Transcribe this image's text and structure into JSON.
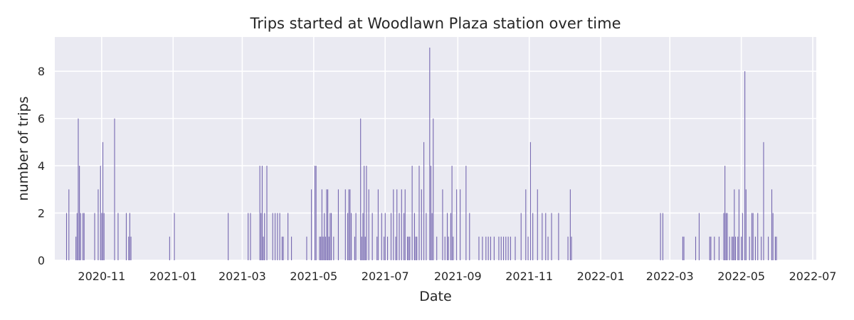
{
  "chart_data": {
    "type": "bar",
    "title": "Trips started at Woodlawn Plaza station over time",
    "xlabel": "Date",
    "ylabel": "number of trips",
    "xlim": [
      "2020-09-22",
      "2022-07-04"
    ],
    "ylim": [
      0,
      9.45
    ],
    "grid": true,
    "bar_color": "#7567b0",
    "background_color": "#eaeaf2",
    "grid_color": "#ffffff",
    "x_ticks": [
      "2020-11-01",
      "2021-01-01",
      "2021-03-01",
      "2021-05-01",
      "2021-07-01",
      "2021-09-01",
      "2021-11-01",
      "2022-01-01",
      "2022-03-01",
      "2022-05-01",
      "2022-07-01"
    ],
    "x_tick_labels": [
      "2020-11",
      "2021-01",
      "2021-03",
      "2021-05",
      "2021-07",
      "2021-09",
      "2021-11",
      "2022-01",
      "2022-03",
      "2022-05",
      "2022-07"
    ],
    "y_ticks": [
      0,
      2,
      4,
      6,
      8
    ],
    "points": [
      [
        "2020-10-02",
        2
      ],
      [
        "2020-10-04",
        3
      ],
      [
        "2020-10-10",
        1
      ],
      [
        "2020-10-11",
        2
      ],
      [
        "2020-10-12",
        6
      ],
      [
        "2020-10-13",
        4
      ],
      [
        "2020-10-14",
        2
      ],
      [
        "2020-10-16",
        2
      ],
      [
        "2020-10-17",
        2
      ],
      [
        "2020-10-26",
        2
      ],
      [
        "2020-10-29",
        3
      ],
      [
        "2020-10-31",
        4
      ],
      [
        "2020-11-01",
        2
      ],
      [
        "2020-11-02",
        5
      ],
      [
        "2020-11-03",
        2
      ],
      [
        "2020-11-12",
        6
      ],
      [
        "2020-11-15",
        2
      ],
      [
        "2020-11-22",
        2
      ],
      [
        "2020-11-24",
        1
      ],
      [
        "2020-11-25",
        2
      ],
      [
        "2020-11-26",
        1
      ],
      [
        "2020-12-29",
        1
      ],
      [
        "2021-01-02",
        2
      ],
      [
        "2021-02-17",
        2
      ],
      [
        "2021-03-06",
        2
      ],
      [
        "2021-03-08",
        2
      ],
      [
        "2021-03-16",
        4
      ],
      [
        "2021-03-17",
        2
      ],
      [
        "2021-03-18",
        4
      ],
      [
        "2021-03-19",
        1
      ],
      [
        "2021-03-20",
        2
      ],
      [
        "2021-03-22",
        4
      ],
      [
        "2021-03-27",
        2
      ],
      [
        "2021-03-29",
        2
      ],
      [
        "2021-03-31",
        2
      ],
      [
        "2021-04-02",
        2
      ],
      [
        "2021-04-04",
        1
      ],
      [
        "2021-04-05",
        1
      ],
      [
        "2021-04-09",
        2
      ],
      [
        "2021-04-12",
        1
      ],
      [
        "2021-04-25",
        1
      ],
      [
        "2021-04-29",
        3
      ],
      [
        "2021-05-02",
        4
      ],
      [
        "2021-05-03",
        4
      ],
      [
        "2021-05-06",
        1
      ],
      [
        "2021-05-07",
        1
      ],
      [
        "2021-05-08",
        3
      ],
      [
        "2021-05-09",
        1
      ],
      [
        "2021-05-10",
        2
      ],
      [
        "2021-05-11",
        1
      ],
      [
        "2021-05-12",
        3
      ],
      [
        "2021-05-13",
        3
      ],
      [
        "2021-05-14",
        1
      ],
      [
        "2021-05-15",
        2
      ],
      [
        "2021-05-16",
        2
      ],
      [
        "2021-05-18",
        1
      ],
      [
        "2021-05-22",
        3
      ],
      [
        "2021-05-28",
        3
      ],
      [
        "2021-05-30",
        2
      ],
      [
        "2021-05-31",
        3
      ],
      [
        "2021-06-01",
        3
      ],
      [
        "2021-06-02",
        2
      ],
      [
        "2021-06-05",
        1
      ],
      [
        "2021-06-06",
        2
      ],
      [
        "2021-06-10",
        6
      ],
      [
        "2021-06-11",
        1
      ],
      [
        "2021-06-12",
        2
      ],
      [
        "2021-06-13",
        4
      ],
      [
        "2021-06-14",
        1
      ],
      [
        "2021-06-15",
        4
      ],
      [
        "2021-06-17",
        3
      ],
      [
        "2021-06-20",
        2
      ],
      [
        "2021-06-24",
        1
      ],
      [
        "2021-06-25",
        3
      ],
      [
        "2021-06-28",
        2
      ],
      [
        "2021-06-30",
        1
      ],
      [
        "2021-07-01",
        2
      ],
      [
        "2021-07-03",
        1
      ],
      [
        "2021-07-06",
        2
      ],
      [
        "2021-07-08",
        3
      ],
      [
        "2021-07-10",
        1
      ],
      [
        "2021-07-11",
        3
      ],
      [
        "2021-07-13",
        2
      ],
      [
        "2021-07-15",
        3
      ],
      [
        "2021-07-17",
        2
      ],
      [
        "2021-07-18",
        3
      ],
      [
        "2021-07-20",
        1
      ],
      [
        "2021-07-21",
        1
      ],
      [
        "2021-07-22",
        1
      ],
      [
        "2021-07-24",
        4
      ],
      [
        "2021-07-26",
        2
      ],
      [
        "2021-07-27",
        1
      ],
      [
        "2021-07-28",
        1
      ],
      [
        "2021-07-30",
        4
      ],
      [
        "2021-08-01",
        3
      ],
      [
        "2021-08-03",
        5
      ],
      [
        "2021-08-05",
        2
      ],
      [
        "2021-08-08",
        9
      ],
      [
        "2021-08-09",
        4
      ],
      [
        "2021-08-10",
        2
      ],
      [
        "2021-08-11",
        6
      ],
      [
        "2021-08-14",
        1
      ],
      [
        "2021-08-19",
        3
      ],
      [
        "2021-08-21",
        1
      ],
      [
        "2021-08-23",
        2
      ],
      [
        "2021-08-24",
        1
      ],
      [
        "2021-08-26",
        2
      ],
      [
        "2021-08-27",
        4
      ],
      [
        "2021-08-28",
        1
      ],
      [
        "2021-08-31",
        3
      ],
      [
        "2021-09-03",
        3
      ],
      [
        "2021-09-08",
        4
      ],
      [
        "2021-09-11",
        2
      ],
      [
        "2021-09-19",
        1
      ],
      [
        "2021-09-22",
        1
      ],
      [
        "2021-09-25",
        1
      ],
      [
        "2021-09-27",
        1
      ],
      [
        "2021-09-29",
        1
      ],
      [
        "2021-10-02",
        1
      ],
      [
        "2021-10-06",
        1
      ],
      [
        "2021-10-08",
        1
      ],
      [
        "2021-10-10",
        1
      ],
      [
        "2021-10-12",
        1
      ],
      [
        "2021-10-14",
        1
      ],
      [
        "2021-10-16",
        1
      ],
      [
        "2021-10-20",
        1
      ],
      [
        "2021-10-25",
        2
      ],
      [
        "2021-10-29",
        3
      ],
      [
        "2021-10-31",
        1
      ],
      [
        "2021-11-02",
        5
      ],
      [
        "2021-11-04",
        2
      ],
      [
        "2021-11-08",
        3
      ],
      [
        "2021-11-12",
        2
      ],
      [
        "2021-11-15",
        2
      ],
      [
        "2021-11-17",
        1
      ],
      [
        "2021-11-20",
        2
      ],
      [
        "2021-11-26",
        2
      ],
      [
        "2021-12-04",
        1
      ],
      [
        "2021-12-06",
        3
      ],
      [
        "2021-12-07",
        1
      ],
      [
        "2022-02-21",
        2
      ],
      [
        "2022-02-23",
        2
      ],
      [
        "2022-03-12",
        1
      ],
      [
        "2022-03-13",
        1
      ],
      [
        "2022-03-23",
        1
      ],
      [
        "2022-03-26",
        2
      ],
      [
        "2022-04-04",
        1
      ],
      [
        "2022-04-05",
        1
      ],
      [
        "2022-04-08",
        1
      ],
      [
        "2022-04-12",
        1
      ],
      [
        "2022-04-16",
        2
      ],
      [
        "2022-04-17",
        4
      ],
      [
        "2022-04-18",
        2
      ],
      [
        "2022-04-19",
        2
      ],
      [
        "2022-04-21",
        1
      ],
      [
        "2022-04-23",
        1
      ],
      [
        "2022-04-24",
        1
      ],
      [
        "2022-04-25",
        3
      ],
      [
        "2022-04-26",
        1
      ],
      [
        "2022-04-28",
        1
      ],
      [
        "2022-04-29",
        3
      ],
      [
        "2022-05-01",
        1
      ],
      [
        "2022-05-02",
        2
      ],
      [
        "2022-05-04",
        8
      ],
      [
        "2022-05-05",
        3
      ],
      [
        "2022-05-08",
        1
      ],
      [
        "2022-05-10",
        2
      ],
      [
        "2022-05-11",
        2
      ],
      [
        "2022-05-13",
        1
      ],
      [
        "2022-05-15",
        2
      ],
      [
        "2022-05-18",
        1
      ],
      [
        "2022-05-20",
        5
      ],
      [
        "2022-05-24",
        1
      ],
      [
        "2022-05-27",
        3
      ],
      [
        "2022-05-28",
        2
      ],
      [
        "2022-05-30",
        1
      ],
      [
        "2022-05-31",
        1
      ]
    ]
  }
}
